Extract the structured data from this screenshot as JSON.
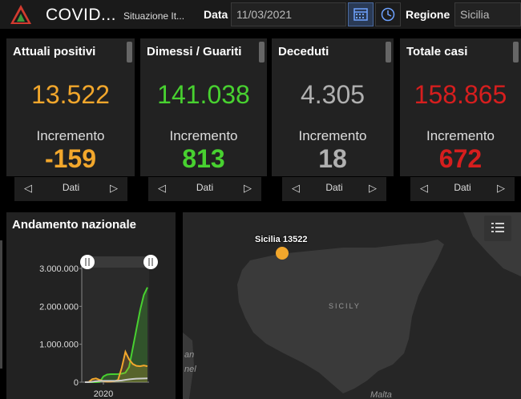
{
  "header": {
    "title": "COVID...",
    "subtitle": "Situazione It...",
    "date_label": "Data",
    "date_value": "11/03/2021",
    "region_label": "Regione",
    "region_value": "Sicilia"
  },
  "cards": [
    {
      "title": "Attuali positivi",
      "value": "13.522",
      "increment_label": "Incremento",
      "increment": "-159",
      "color": "#f2a72c",
      "nav_label": "Dati"
    },
    {
      "title": "Dimessi / Guariti",
      "value": "141.038",
      "increment_label": "Incremento",
      "increment": "813",
      "color": "#48d130",
      "nav_label": "Dati"
    },
    {
      "title": "Deceduti",
      "value": "4.305",
      "increment_label": "Incremento",
      "increment": "18",
      "color": "#b0b0b0",
      "nav_label": "Dati"
    },
    {
      "title": "Totale casi",
      "value": "158.865",
      "increment_label": "Incremento",
      "increment": "672",
      "color": "#d61e1e",
      "nav_label": "Dati"
    }
  ],
  "chart_panel": {
    "title": "Andamento nazionale"
  },
  "map": {
    "region_label": "SICILY",
    "point_label": "Sicilia 13522",
    "place_1": "an",
    "place_2": "nel",
    "place_3": "Malta"
  },
  "icons": {
    "calendar": "calendar-icon",
    "clock": "clock-icon",
    "legend": "legend-list-icon",
    "prev": "chevron-left-icon",
    "next": "chevron-right-icon"
  },
  "chart_data": {
    "type": "area",
    "x_ticks": [
      "2020"
    ],
    "y_ticks": [
      "3.000.000",
      "2.000.000",
      "1.000.000",
      "0"
    ],
    "ylim": [
      0,
      3000000
    ],
    "grid": false,
    "series": [
      {
        "color": "#48d130",
        "values": [
          0,
          0,
          0,
          0,
          5000,
          150000,
          200000,
          210000,
          210000,
          215000,
          225000,
          250000,
          400000,
          900000,
          1400000,
          1900000,
          2300000,
          2500000
        ]
      },
      {
        "color": "#f2a72c",
        "values": [
          0,
          5000,
          80000,
          100000,
          60000,
          25000,
          12000,
          15000,
          25000,
          60000,
          380000,
          800000,
          600000,
          480000,
          430000,
          420000,
          440000,
          420000
        ]
      },
      {
        "color": "#cccccc",
        "values": [
          0,
          0,
          10000,
          25000,
          32000,
          34000,
          35000,
          35000,
          35500,
          36000,
          45000,
          60000,
          75000,
          85000,
          92000,
          96000,
          99000,
          101000
        ]
      }
    ]
  }
}
